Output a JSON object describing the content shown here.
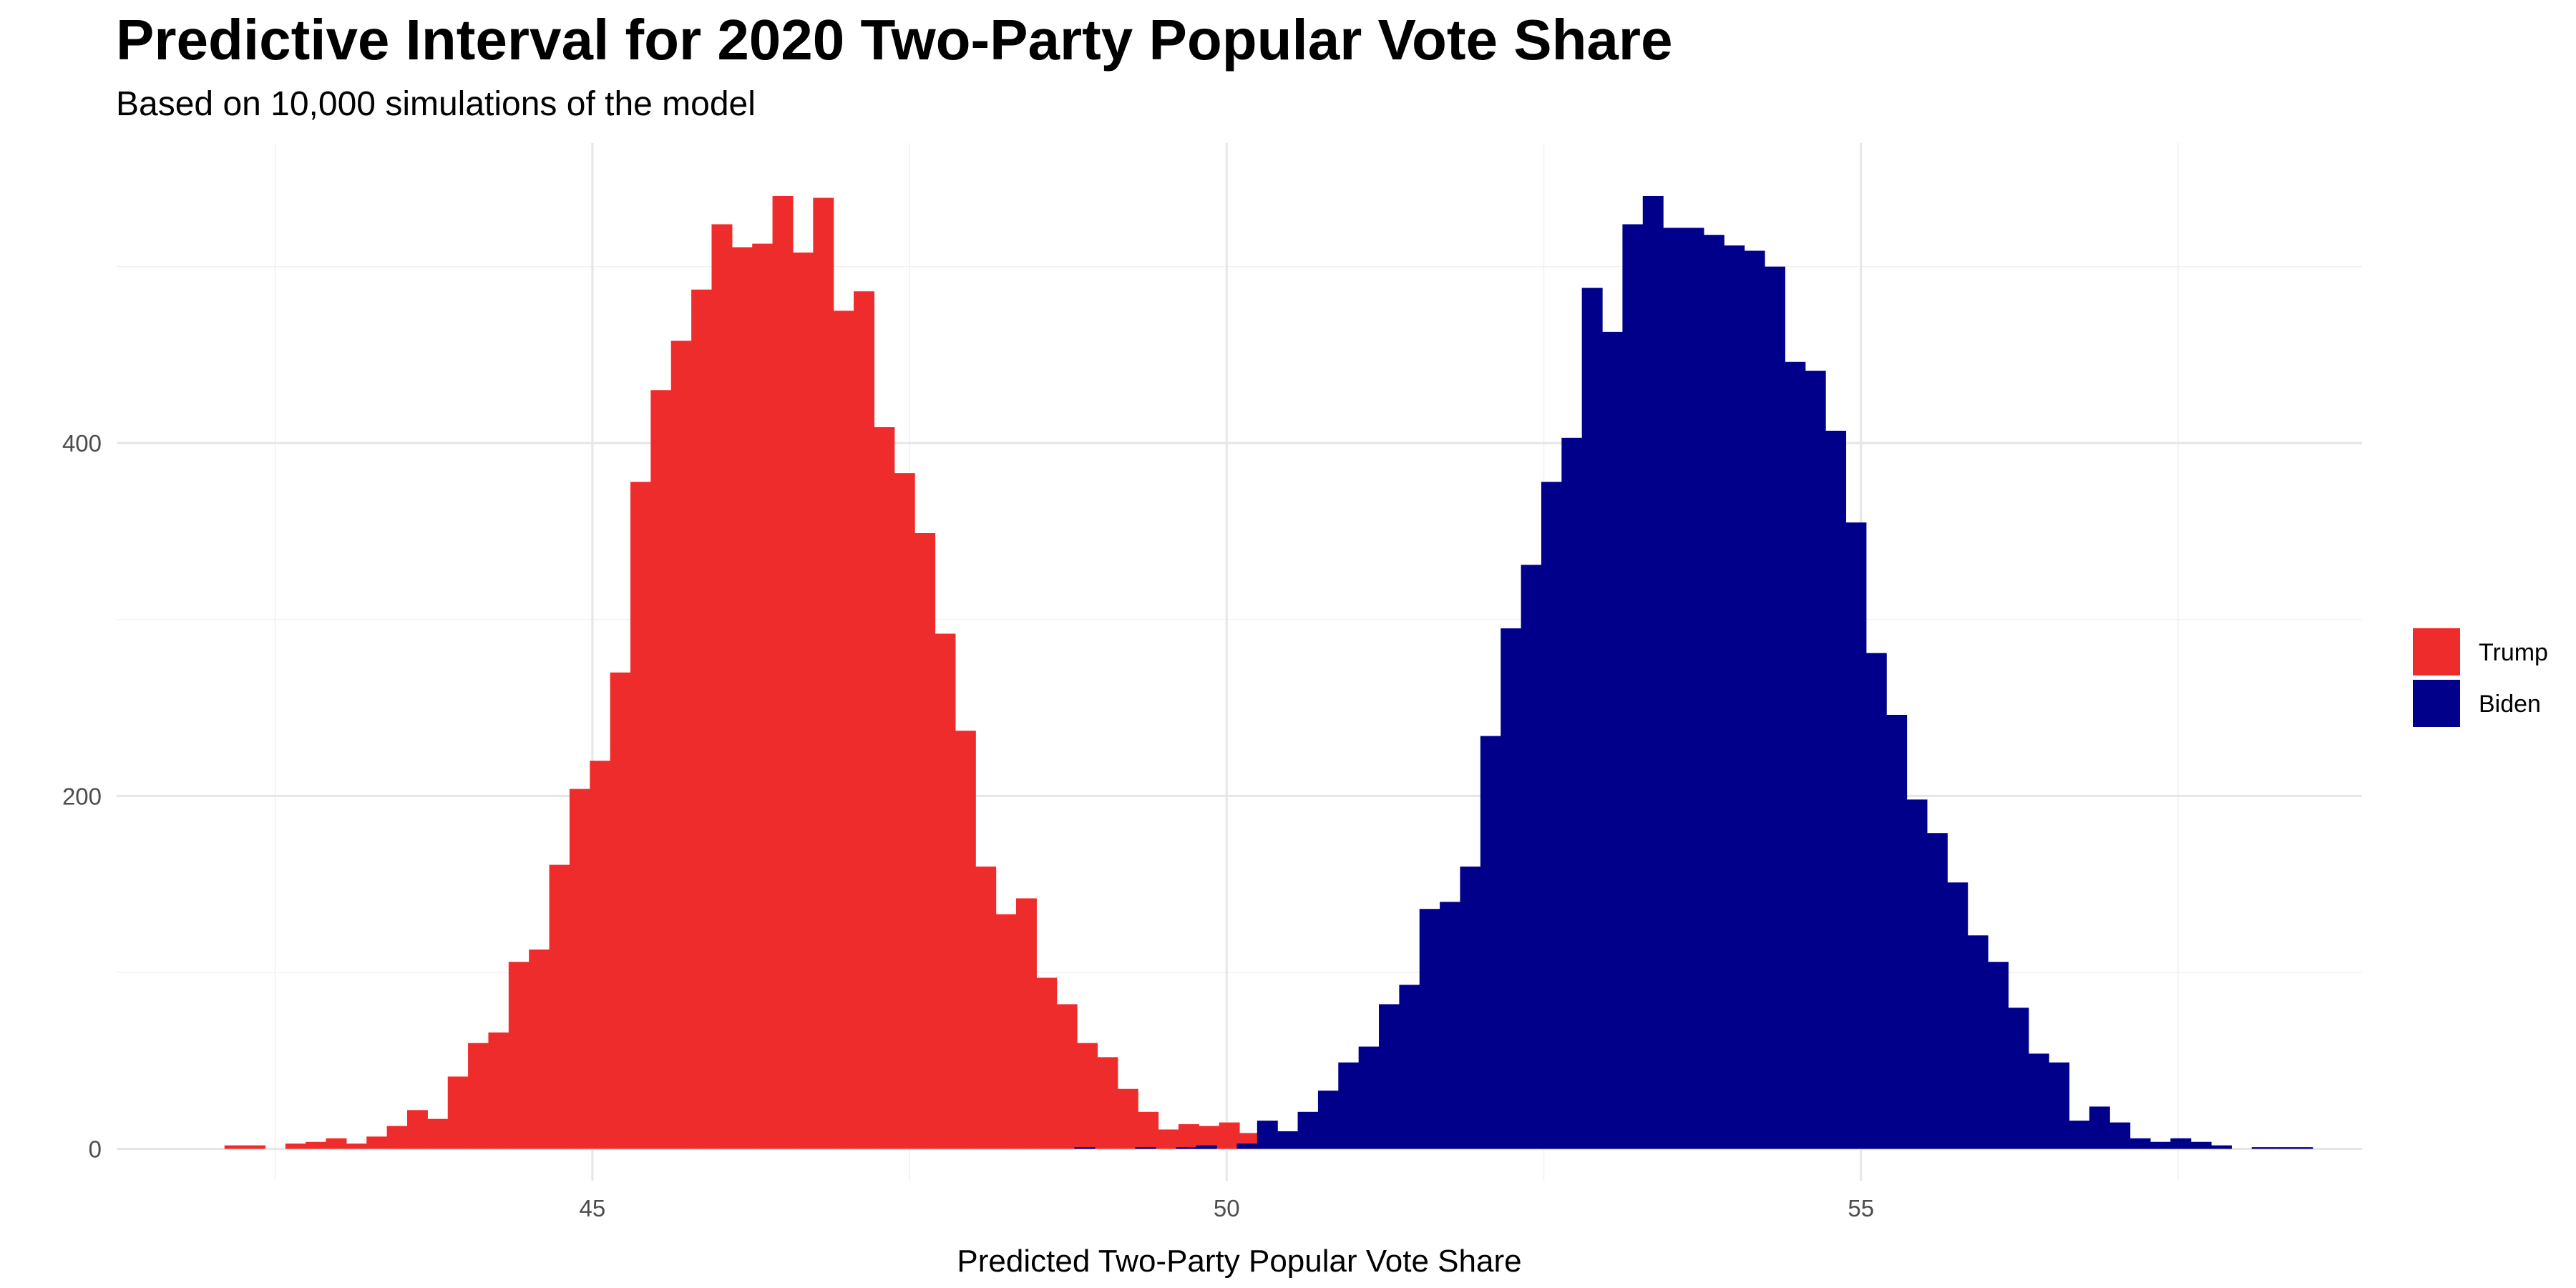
{
  "chart_data": {
    "type": "bar",
    "title": "Predictive Interval for 2020 Two-Party Popular Vote Share",
    "subtitle": "Based on 10,000 simulations of the model",
    "xlabel": "Predicted Two-Party Popular Vote Share",
    "ylabel": "",
    "xlim": [
      41.25,
      58.95
    ],
    "ylim": [
      -18,
      570
    ],
    "x_ticks": [
      45,
      50,
      55
    ],
    "y_ticks": [
      0,
      200,
      400
    ],
    "x_minor_grid": [
      42.5,
      47.5,
      52.5,
      57.5
    ],
    "y_minor_grid": [
      100,
      300,
      500
    ],
    "grid": true,
    "legend_position": "right",
    "bin_width": 0.16,
    "series": [
      {
        "name": "Trump",
        "color": "#EE2C2C",
        "bin_start": 42.1,
        "values": [
          2,
          2,
          0,
          3,
          4,
          6,
          3,
          7,
          13,
          22,
          17,
          41,
          60,
          66,
          106,
          113,
          161,
          204,
          220,
          270,
          378,
          430,
          458,
          487,
          524,
          511,
          513,
          540,
          508,
          539,
          475,
          486,
          409,
          383,
          349,
          292,
          237,
          160,
          133,
          142,
          97,
          82,
          60,
          52,
          34,
          21,
          11,
          14,
          13,
          15,
          9
        ]
      },
      {
        "name": "Biden",
        "color": "#00008B",
        "bin_start": 48.8,
        "values": [
          1,
          0,
          0,
          1,
          0,
          1,
          2,
          0,
          3,
          16,
          10,
          21,
          33,
          49,
          58,
          82,
          93,
          136,
          140,
          160,
          234,
          295,
          331,
          378,
          403,
          488,
          463,
          524,
          540,
          522,
          522,
          518,
          512,
          509,
          500,
          446,
          441,
          407,
          355,
          281,
          246,
          198,
          179,
          151,
          121,
          106,
          80,
          54,
          49,
          16,
          24,
          15,
          6,
          4,
          6,
          4,
          2,
          0,
          1,
          1,
          1
        ]
      }
    ]
  }
}
